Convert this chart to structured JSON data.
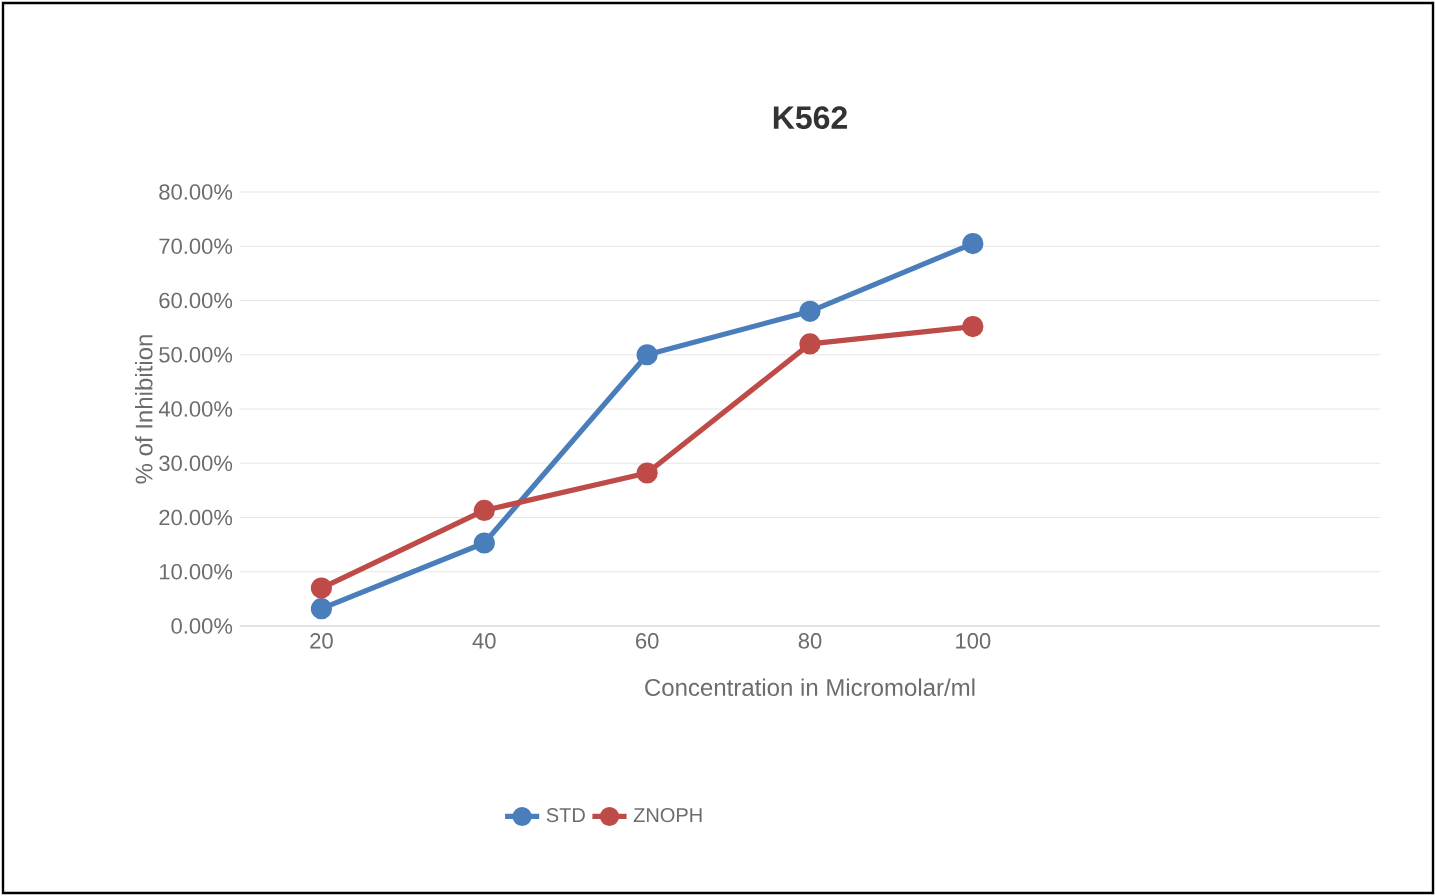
{
  "chart_data": {
    "type": "line",
    "title": "K562",
    "xlabel": "Concentration in Micromolar/ml",
    "ylabel": "% of Inhibition",
    "categories": [
      "20",
      "40",
      "60",
      "80",
      "100",
      null,
      null
    ],
    "series": [
      {
        "name": "STD",
        "color": "#4a7ebb",
        "values": [
          3.2,
          15.3,
          50.0,
          58.0,
          70.5,
          null,
          null
        ]
      },
      {
        "name": "ZNOPH",
        "color": "#be4b48",
        "values": [
          7.0,
          21.3,
          28.2,
          52.0,
          55.2,
          null,
          null
        ]
      }
    ],
    "ylim": [
      0,
      80
    ],
    "yticks": [
      {
        "value": 0,
        "label": "0.00%"
      },
      {
        "value": 10,
        "label": "10.00%"
      },
      {
        "value": 20,
        "label": "20.00%"
      },
      {
        "value": 30,
        "label": "30.00%"
      },
      {
        "value": 40,
        "label": "40.00%"
      },
      {
        "value": 50,
        "label": "50.00%"
      },
      {
        "value": 60,
        "label": "60.00%"
      },
      {
        "value": 70,
        "label": "70.00%"
      },
      {
        "value": 80,
        "label": "80.00%"
      }
    ],
    "grid": "y",
    "legend": "bottom",
    "marker": "circle",
    "line_style": "solid"
  }
}
